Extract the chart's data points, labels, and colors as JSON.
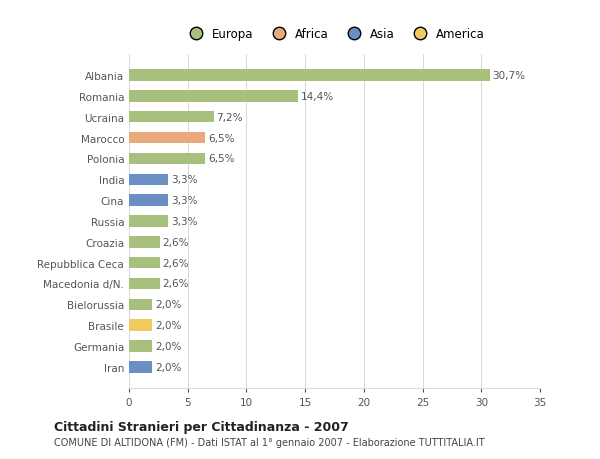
{
  "categories": [
    "Albania",
    "Romania",
    "Ucraina",
    "Marocco",
    "Polonia",
    "India",
    "Cina",
    "Russia",
    "Croazia",
    "Repubblica Ceca",
    "Macedonia d/N.",
    "Bielorussia",
    "Brasile",
    "Germania",
    "Iran"
  ],
  "values": [
    30.7,
    14.4,
    7.2,
    6.5,
    6.5,
    3.3,
    3.3,
    3.3,
    2.6,
    2.6,
    2.6,
    2.0,
    2.0,
    2.0,
    2.0
  ],
  "labels": [
    "30,7%",
    "14,4%",
    "7,2%",
    "6,5%",
    "6,5%",
    "3,3%",
    "3,3%",
    "3,3%",
    "2,6%",
    "2,6%",
    "2,6%",
    "2,0%",
    "2,0%",
    "2,0%",
    "2,0%"
  ],
  "colors": [
    "#a8c07e",
    "#a8c07e",
    "#a8c07e",
    "#e8aa7a",
    "#a8c07e",
    "#6b8fc2",
    "#6b8fc2",
    "#a8c07e",
    "#a8c07e",
    "#a8c07e",
    "#a8c07e",
    "#a8c07e",
    "#f0cc60",
    "#a8c07e",
    "#6b8fc2"
  ],
  "continent_colors": {
    "Europa": "#a8c07e",
    "Africa": "#e8aa7a",
    "Asia": "#6b8fc2",
    "America": "#f0cc60"
  },
  "title": "Cittadini Stranieri per Cittadinanza - 2007",
  "subtitle": "COMUNE DI ALTIDONA (FM) - Dati ISTAT al 1° gennaio 2007 - Elaborazione TUTTITALIA.IT",
  "xlim": [
    0,
    35
  ],
  "xticks": [
    0,
    5,
    10,
    15,
    20,
    25,
    30,
    35
  ],
  "background_color": "#ffffff",
  "grid_color": "#d8d8d8",
  "text_color": "#555555",
  "bar_height": 0.55,
  "label_fontsize": 7.5,
  "ytick_fontsize": 7.5,
  "xtick_fontsize": 7.5,
  "title_fontsize": 9,
  "subtitle_fontsize": 7,
  "legend_fontsize": 8.5
}
